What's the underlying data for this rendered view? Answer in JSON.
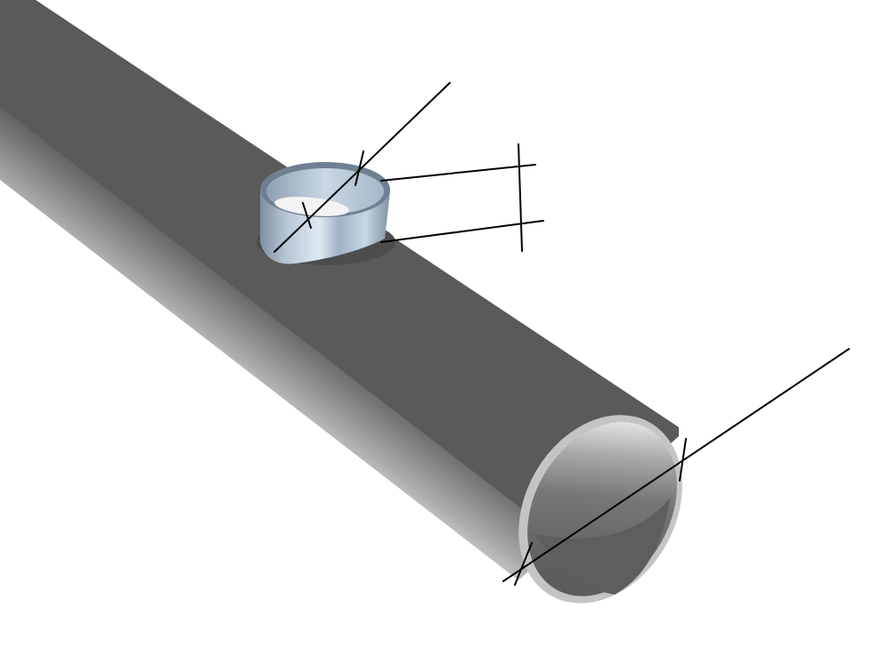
{
  "drawing": {
    "colors": {
      "background": "#ffffff",
      "pipe_body": "#5a5a5a",
      "pipe_highlight": "#e6e6e6",
      "pipe_rim": "#c8c8c8",
      "fitting_steel": "#b9cbdc",
      "fitting_shadow": "#6f8092",
      "dimension_line": "#000000"
    },
    "components": [
      {
        "name": "main-pipe",
        "kind": "tube"
      },
      {
        "name": "pipe-saddle-fitting",
        "kind": "short cylindrical outlet"
      }
    ],
    "dimensions": [
      {
        "name": "pipe-diameter-dimension",
        "label": ""
      },
      {
        "name": "fitting-diameter-dimension",
        "label": ""
      },
      {
        "name": "fitting-height-dimension",
        "label": ""
      }
    ]
  }
}
